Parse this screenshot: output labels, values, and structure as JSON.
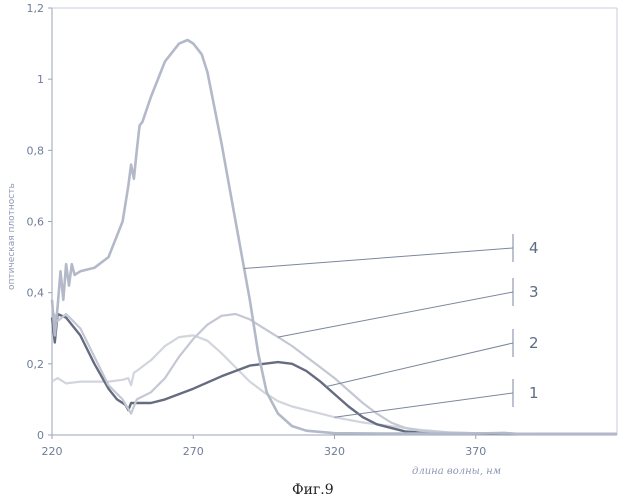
{
  "chart_data": {
    "type": "line",
    "title": "",
    "caption": "Фиг.9",
    "xlabel": "длина волны, нм",
    "ylabel": "оптическая плотность",
    "xlim": [
      220,
      420
    ],
    "ylim": [
      0,
      1.2
    ],
    "x_ticks": [
      "220",
      "270",
      "320",
      "370"
    ],
    "y_ticks": [
      "0",
      "0,2",
      "0,4",
      "0,6",
      "0,8",
      "1",
      "1,2"
    ],
    "grid": false,
    "series": [
      {
        "name": "1",
        "color": "#d2d5dd",
        "points": [
          [
            220,
            0.15
          ],
          [
            222,
            0.16
          ],
          [
            225,
            0.145
          ],
          [
            230,
            0.15
          ],
          [
            240,
            0.15
          ],
          [
            245,
            0.155
          ],
          [
            247,
            0.16
          ],
          [
            248,
            0.14
          ],
          [
            249,
            0.175
          ],
          [
            250,
            0.18
          ],
          [
            255,
            0.21
          ],
          [
            260,
            0.25
          ],
          [
            265,
            0.275
          ],
          [
            270,
            0.28
          ],
          [
            275,
            0.265
          ],
          [
            280,
            0.23
          ],
          [
            285,
            0.19
          ],
          [
            290,
            0.15
          ],
          [
            295,
            0.12
          ],
          [
            300,
            0.095
          ],
          [
            305,
            0.08
          ],
          [
            310,
            0.07
          ],
          [
            315,
            0.06
          ],
          [
            320,
            0.05
          ],
          [
            330,
            0.035
          ],
          [
            340,
            0.025
          ],
          [
            350,
            0.015
          ],
          [
            360,
            0.008
          ],
          [
            370,
            0.005
          ],
          [
            380,
            0.004
          ],
          [
            400,
            0.003
          ],
          [
            420,
            0.003
          ]
        ]
      },
      {
        "name": "2",
        "color": "#666c80",
        "points": [
          [
            220,
            0.33
          ],
          [
            221,
            0.26
          ],
          [
            222,
            0.34
          ],
          [
            225,
            0.33
          ],
          [
            227,
            0.31
          ],
          [
            230,
            0.28
          ],
          [
            235,
            0.2
          ],
          [
            240,
            0.13
          ],
          [
            243,
            0.1
          ],
          [
            246,
            0.085
          ],
          [
            247,
            0.07
          ],
          [
            248,
            0.09
          ],
          [
            250,
            0.09
          ],
          [
            255,
            0.09
          ],
          [
            260,
            0.1
          ],
          [
            270,
            0.13
          ],
          [
            280,
            0.165
          ],
          [
            290,
            0.195
          ],
          [
            295,
            0.2
          ],
          [
            300,
            0.205
          ],
          [
            305,
            0.2
          ],
          [
            310,
            0.18
          ],
          [
            315,
            0.15
          ],
          [
            320,
            0.115
          ],
          [
            325,
            0.08
          ],
          [
            330,
            0.05
          ],
          [
            335,
            0.03
          ],
          [
            340,
            0.02
          ],
          [
            345,
            0.01
          ],
          [
            350,
            0.007
          ],
          [
            360,
            0.005
          ],
          [
            370,
            0.004
          ],
          [
            380,
            0.003
          ],
          [
            400,
            0.003
          ],
          [
            420,
            0.003
          ]
        ]
      },
      {
        "name": "3",
        "color": "#c4c8d3",
        "points": [
          [
            220,
            0.35
          ],
          [
            222,
            0.32
          ],
          [
            225,
            0.34
          ],
          [
            230,
            0.3
          ],
          [
            235,
            0.22
          ],
          [
            240,
            0.14
          ],
          [
            245,
            0.1
          ],
          [
            248,
            0.06
          ],
          [
            250,
            0.1
          ],
          [
            255,
            0.12
          ],
          [
            260,
            0.16
          ],
          [
            265,
            0.22
          ],
          [
            270,
            0.27
          ],
          [
            275,
            0.31
          ],
          [
            280,
            0.335
          ],
          [
            285,
            0.34
          ],
          [
            290,
            0.325
          ],
          [
            295,
            0.3
          ],
          [
            300,
            0.275
          ],
          [
            305,
            0.25
          ],
          [
            310,
            0.22
          ],
          [
            315,
            0.19
          ],
          [
            320,
            0.16
          ],
          [
            325,
            0.125
          ],
          [
            330,
            0.09
          ],
          [
            335,
            0.06
          ],
          [
            340,
            0.035
          ],
          [
            345,
            0.02
          ],
          [
            350,
            0.012
          ],
          [
            360,
            0.007
          ],
          [
            370,
            0.005
          ],
          [
            380,
            0.004
          ],
          [
            400,
            0.003
          ],
          [
            420,
            0.003
          ]
        ]
      },
      {
        "name": "4",
        "color": "#b3b9c9",
        "points": [
          [
            220,
            0.38
          ],
          [
            221,
            0.28
          ],
          [
            222,
            0.36
          ],
          [
            223,
            0.46
          ],
          [
            224,
            0.38
          ],
          [
            225,
            0.48
          ],
          [
            226,
            0.42
          ],
          [
            227,
            0.48
          ],
          [
            228,
            0.45
          ],
          [
            230,
            0.46
          ],
          [
            235,
            0.47
          ],
          [
            240,
            0.5
          ],
          [
            245,
            0.6
          ],
          [
            247,
            0.7
          ],
          [
            248,
            0.76
          ],
          [
            249,
            0.72
          ],
          [
            250,
            0.8
          ],
          [
            251,
            0.87
          ],
          [
            252,
            0.88
          ],
          [
            255,
            0.95
          ],
          [
            260,
            1.05
          ],
          [
            265,
            1.1
          ],
          [
            268,
            1.11
          ],
          [
            270,
            1.1
          ],
          [
            273,
            1.07
          ],
          [
            275,
            1.02
          ],
          [
            280,
            0.82
          ],
          [
            285,
            0.6
          ],
          [
            290,
            0.38
          ],
          [
            293,
            0.23
          ],
          [
            296,
            0.12
          ],
          [
            300,
            0.06
          ],
          [
            305,
            0.025
          ],
          [
            310,
            0.012
          ],
          [
            320,
            0.005
          ],
          [
            340,
            0.004
          ],
          [
            370,
            0.004
          ],
          [
            380,
            0.006
          ],
          [
            385,
            0.003
          ],
          [
            400,
            0.003
          ],
          [
            420,
            0.003
          ]
        ]
      }
    ],
    "curve_labels": [
      "1",
      "2",
      "3",
      "4"
    ]
  }
}
